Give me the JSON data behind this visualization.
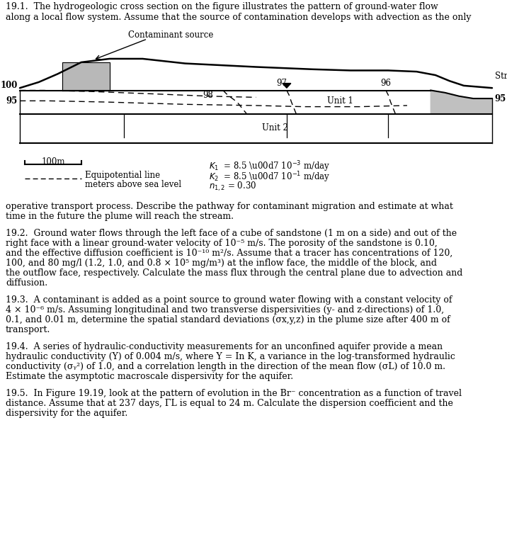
{
  "bg_color": "#ffffff",
  "text_color": "#000000",
  "top_text_line1": "19.1.  The hydrogeologic cross section on the figure illustrates the pattern of ground-water flow",
  "top_text_line2": "along a local flow system. Assume that the source of contamination develops with advection as the only",
  "op_text_line1": "operative transport process. Describe the pathway for contaminant migration and estimate at what",
  "op_text_line2": "time in the future the plume will reach the stream.",
  "p2": "19.2.  Ground water flows through the left face of a cube of sandstone (1 m on a side) and out of the\nright face with a linear ground-water velocity of 10⁻⁵ m/s. The porosity of the sandstone is 0.10,\nand the effective diffusion coefficient is 10⁻¹⁰ m²/s. Assume that a tracer has concentrations of 120,\n100, and 80 mg/l (1.2, 1.0, and 0.8 × 10⁵ mg/m³) at the inflow face, the middle of the block, and\nthe outflow face, respectively. Calculate the mass flux through the central plane due to advection and\ndiffusion.",
  "p3": "19.3.  A contaminant is added as a point source to ground water flowing with a constant velocity of\n4 × 10⁻⁶ m/s. Assuming longitudinal and two transverse dispersivities (y- and z-directions) of 1.0,\n0.1, and 0.01 m, determine the spatial standard deviations (σx,y,z) in the plume size after 400 m of\ntransport.",
  "p4": "19.4.  A series of hydraulic-conductivity measurements for an unconfined aquifer provide a mean\nhydraulic conductivity (Y) of 0.004 m/s, where Y = In K, a variance in the log-transformed hydraulic\nconductivity (σᵧ²) of 1.0, and a correlation length in the direction of the mean flow (σL) of 10.0 m.\nEstimate the asymptotic macroscale dispersivity for the aquifer.",
  "p5": "19.5.  In Figure 19.19, look at the pattern of evolution in the Br⁻ concentration as a function of travel\ndistance. Assume that at 237 days, ΓL is equal to 24 m. Calculate the dispersion coefficient and the\ndispersivity for the aquifer."
}
